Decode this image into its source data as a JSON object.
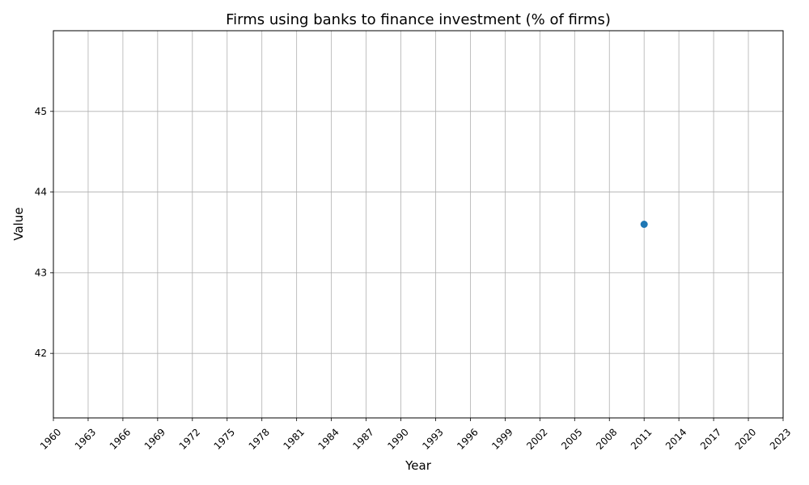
{
  "chart_data": {
    "type": "line",
    "title": "Firms using banks to finance investment (% of firms)",
    "xlabel": "Year",
    "ylabel": "Value",
    "xlim": [
      1960,
      2023
    ],
    "ylim": [
      41.2,
      46.0
    ],
    "xticks": [
      1960,
      1963,
      1966,
      1969,
      1972,
      1975,
      1978,
      1981,
      1984,
      1987,
      1990,
      1993,
      1996,
      1999,
      2002,
      2005,
      2008,
      2011,
      2014,
      2017,
      2020,
      2023
    ],
    "yticks": [
      42,
      43,
      44,
      45
    ],
    "grid": true,
    "series": [
      {
        "color": "#1f77b4",
        "marker": "circle",
        "points": [
          {
            "x": 2011,
            "y": 43.6
          }
        ]
      }
    ]
  }
}
